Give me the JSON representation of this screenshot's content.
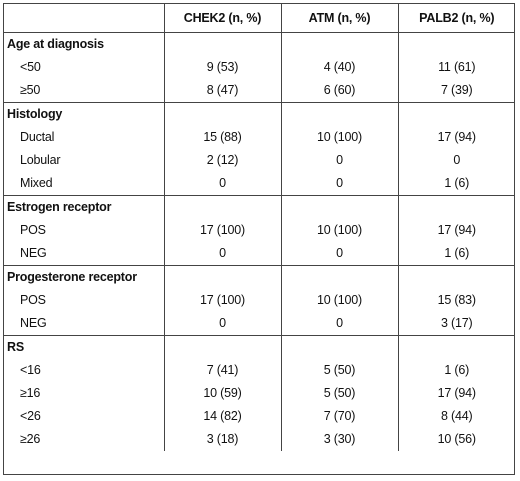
{
  "table": {
    "headers": [
      "",
      "CHEK2 (n, %)",
      "ATM (n, %)",
      "PALB2 (n, %)"
    ],
    "groups": [
      {
        "title": "Age at diagnosis",
        "rows": [
          {
            "label": "<50",
            "chek2": "9 (53)",
            "atm": "4 (40)",
            "palb2": "11 (61)"
          },
          {
            "label": "≥50",
            "chek2": "8 (47)",
            "atm": "6 (60)",
            "palb2": "7 (39)"
          }
        ]
      },
      {
        "title": "Histology",
        "rows": [
          {
            "label": "Ductal",
            "chek2": "15 (88)",
            "atm": "10 (100)",
            "palb2": "17 (94)"
          },
          {
            "label": "Lobular",
            "chek2": "2 (12)",
            "atm": "0",
            "palb2": "0"
          },
          {
            "label": "Mixed",
            "chek2": "0",
            "atm": "0",
            "palb2": "1 (6)"
          }
        ]
      },
      {
        "title": "Estrogen receptor",
        "rows": [
          {
            "label": "POS",
            "chek2": "17 (100)",
            "atm": "10 (100)",
            "palb2": "17 (94)"
          },
          {
            "label": "NEG",
            "chek2": "0",
            "atm": "0",
            "palb2": "1 (6)"
          }
        ]
      },
      {
        "title": "Progesterone receptor",
        "rows": [
          {
            "label": "POS",
            "chek2": "17 (100)",
            "atm": "10 (100)",
            "palb2": "15 (83)"
          },
          {
            "label": "NEG",
            "chek2": "0",
            "atm": "0",
            "palb2": "3 (17)"
          }
        ]
      },
      {
        "title": "RS",
        "rows": [
          {
            "label": "<16",
            "chek2": "7 (41)",
            "atm": "5 (50)",
            "palb2": "1 (6)"
          },
          {
            "label": "≥16",
            "chek2": "10 (59)",
            "atm": "5 (50)",
            "palb2": "17 (94)"
          },
          {
            "label": "<26",
            "chek2": "14 (82)",
            "atm": "7 (70)",
            "palb2": "8 (44)"
          },
          {
            "label": "≥26",
            "chek2": "3 (18)",
            "atm": "3 (30)",
            "palb2": "10 (56)"
          }
        ]
      }
    ]
  }
}
